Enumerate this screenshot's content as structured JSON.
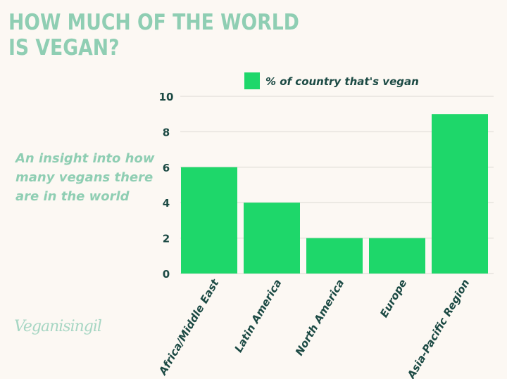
{
  "title": "HOW MUCH OF THE WORLD\nIS VEGAN?",
  "subtitle": "An insight into how many vegans there are in the world",
  "logo_text": "Veganisingil",
  "colors": {
    "background": "#fcf8f3",
    "title": "#8fceb3",
    "bar": "#1ed76a",
    "text": "#1c4a44",
    "grid": "#e6e3de"
  },
  "chart_data": {
    "type": "bar",
    "categories": [
      "Africa/Middle East",
      "Latin America",
      "North America",
      "Europe",
      "Asia-Pacific Region"
    ],
    "series": [
      {
        "name": "% of country that's vegan",
        "values": [
          6,
          4,
          2,
          2,
          9
        ]
      }
    ],
    "yticks": [
      0,
      2,
      4,
      6,
      8,
      10
    ],
    "ytick_labels": [
      "0",
      "2",
      "4",
      "6",
      "8",
      "10"
    ],
    "ylim": [
      0,
      10
    ],
    "grid": true,
    "legend": "top"
  }
}
